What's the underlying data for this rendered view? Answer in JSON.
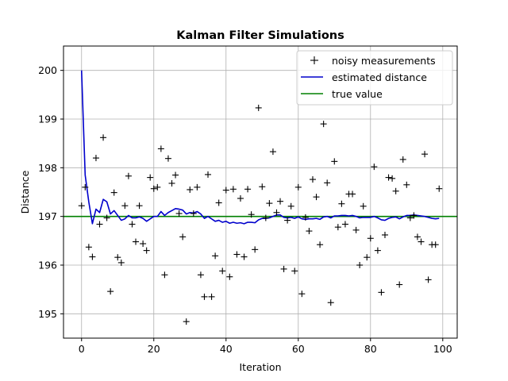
{
  "chart_data": {
    "type": "line",
    "title": "Kalman Filter Simulations",
    "xlabel": "Iteration",
    "ylabel": "Distance",
    "xlim": [
      -5,
      104
    ],
    "ylim": [
      194.5,
      200.5
    ],
    "xticks": [
      0,
      20,
      40,
      60,
      80,
      100
    ],
    "yticks": [
      195,
      196,
      197,
      198,
      199,
      200
    ],
    "grid": true,
    "legend": {
      "position": "top-right"
    },
    "series": [
      {
        "name": "noisy measurements",
        "kind": "scatter",
        "marker": "+",
        "color": "#000000",
        "x": [
          0,
          1,
          2,
          3,
          4,
          5,
          6,
          7,
          8,
          9,
          10,
          11,
          12,
          13,
          14,
          15,
          16,
          17,
          18,
          19,
          20,
          21,
          22,
          23,
          24,
          25,
          26,
          27,
          28,
          29,
          30,
          31,
          32,
          33,
          34,
          35,
          36,
          37,
          38,
          39,
          40,
          41,
          42,
          43,
          44,
          45,
          46,
          47,
          48,
          49,
          50,
          51,
          52,
          53,
          54,
          55,
          56,
          57,
          58,
          59,
          60,
          61,
          62,
          63,
          64,
          65,
          66,
          67,
          68,
          69,
          70,
          71,
          72,
          73,
          74,
          75,
          76,
          77,
          78,
          79,
          80,
          81,
          82,
          83,
          84,
          85,
          86,
          87,
          88,
          89,
          90,
          91,
          92,
          93,
          94,
          95,
          96,
          97,
          98,
          99
        ],
        "y": [
          197.22,
          197.6,
          196.37,
          196.17,
          198.2,
          196.84,
          198.62,
          196.97,
          195.46,
          197.49,
          196.16,
          196.05,
          197.22,
          197.83,
          196.84,
          196.48,
          197.22,
          196.44,
          196.3,
          197.8,
          197.57,
          197.6,
          198.39,
          195.8,
          198.19,
          197.68,
          197.85,
          197.06,
          196.58,
          194.84,
          197.55,
          197.06,
          197.6,
          195.8,
          195.35,
          197.86,
          195.35,
          196.19,
          197.28,
          195.88,
          197.54,
          195.76,
          197.56,
          196.22,
          197.37,
          196.17,
          197.56,
          197.04,
          196.32,
          199.23,
          197.61,
          196.97,
          197.27,
          198.33,
          197.08,
          197.31,
          195.92,
          196.92,
          197.21,
          195.88,
          197.6,
          195.41,
          196.98,
          196.7,
          197.76,
          197.4,
          196.42,
          198.9,
          197.69,
          195.23,
          198.13,
          196.78,
          197.26,
          196.84,
          197.46,
          197.46,
          196.72,
          196.0,
          197.21,
          196.16,
          196.55,
          198.02,
          196.3,
          195.44,
          196.62,
          197.8,
          197.78,
          197.52,
          195.6,
          198.17,
          197.65,
          196.97,
          197.02,
          196.58,
          196.48,
          198.28,
          195.7,
          196.42,
          196.42,
          197.57
        ]
      },
      {
        "name": "estimated distance",
        "kind": "line",
        "color": "#0000cc",
        "x": [
          0,
          1,
          2,
          3,
          4,
          5,
          6,
          7,
          8,
          9,
          10,
          11,
          12,
          13,
          14,
          15,
          16,
          17,
          18,
          19,
          20,
          21,
          22,
          23,
          24,
          25,
          26,
          27,
          28,
          29,
          30,
          31,
          32,
          33,
          34,
          35,
          36,
          37,
          38,
          39,
          40,
          41,
          42,
          43,
          44,
          45,
          46,
          47,
          48,
          49,
          50,
          51,
          52,
          53,
          54,
          55,
          56,
          57,
          58,
          59,
          60,
          61,
          62,
          63,
          64,
          65,
          66,
          67,
          68,
          69,
          70,
          71,
          72,
          73,
          74,
          75,
          76,
          77,
          78,
          79,
          80,
          81,
          82,
          83,
          84,
          85,
          86,
          87,
          88,
          89,
          90,
          91,
          92,
          93,
          94,
          95,
          96,
          97,
          98,
          99
        ],
        "y": [
          200.0,
          197.85,
          197.3,
          196.85,
          197.15,
          197.08,
          197.35,
          197.3,
          197.05,
          197.12,
          197.02,
          196.92,
          196.95,
          197.02,
          196.97,
          196.97,
          196.99,
          196.96,
          196.9,
          196.95,
          197.0,
          197.0,
          197.1,
          197.02,
          197.08,
          197.12,
          197.16,
          197.15,
          197.13,
          197.05,
          197.08,
          197.07,
          197.1,
          197.05,
          196.96,
          197.0,
          196.95,
          196.9,
          196.92,
          196.88,
          196.9,
          196.86,
          196.88,
          196.86,
          196.87,
          196.85,
          196.88,
          196.88,
          196.87,
          196.93,
          196.96,
          196.96,
          196.97,
          197.0,
          197.03,
          197.03,
          196.98,
          196.97,
          196.98,
          196.96,
          196.99,
          196.95,
          196.94,
          196.95,
          196.95,
          196.96,
          196.94,
          196.99,
          197.0,
          196.97,
          197.01,
          197.01,
          197.02,
          197.02,
          197.01,
          197.02,
          197.0,
          196.97,
          196.98,
          196.98,
          196.98,
          197.0,
          196.97,
          196.93,
          196.92,
          196.96,
          196.98,
          196.99,
          196.95,
          196.99,
          197.02,
          197.02,
          197.03,
          197.02,
          197.01,
          197.0,
          196.98,
          196.96,
          196.95,
          196.96
        ]
      },
      {
        "name": "true value",
        "kind": "hline",
        "color": "#008000",
        "y": 197.0
      }
    ]
  }
}
